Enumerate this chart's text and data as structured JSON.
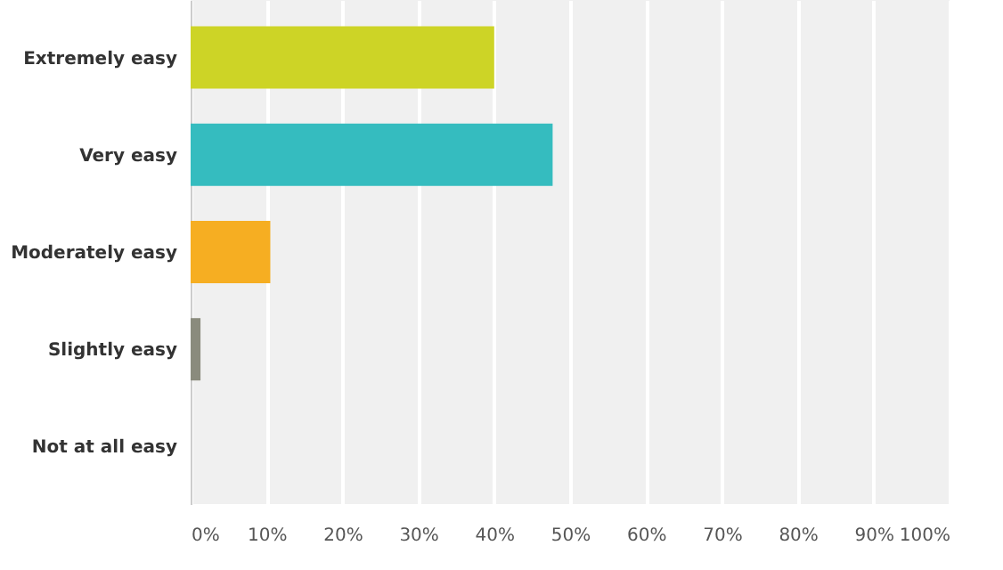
{
  "chart_data": {
    "type": "bar",
    "orientation": "horizontal",
    "categories": [
      "Extremely easy",
      "Very easy",
      "Moderately easy",
      "Slightly easy",
      "Not at all easy"
    ],
    "values": [
      40,
      47.7,
      10.5,
      1.3,
      0
    ],
    "colors": [
      "#cdd426",
      "#35bcbf",
      "#f6ae22",
      "#8a8b7d",
      "#d9d9d9"
    ],
    "xlim": [
      0,
      100
    ],
    "xticks": [
      {
        "value": 0,
        "label": "0%"
      },
      {
        "value": 10,
        "label": "10%"
      },
      {
        "value": 20,
        "label": "20%"
      },
      {
        "value": 30,
        "label": "30%"
      },
      {
        "value": 40,
        "label": "40%"
      },
      {
        "value": 50,
        "label": "50%"
      },
      {
        "value": 60,
        "label": "60%"
      },
      {
        "value": 70,
        "label": "70%"
      },
      {
        "value": 80,
        "label": "80%"
      },
      {
        "value": 90,
        "label": "90%"
      },
      {
        "value": 100,
        "label": "100%"
      }
    ],
    "grid": "x"
  }
}
